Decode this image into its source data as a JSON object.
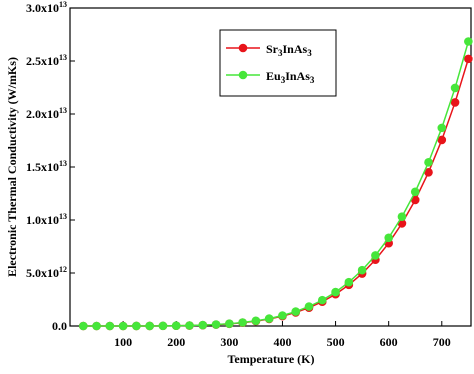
{
  "chart_data": {
    "type": "line",
    "x_label": "Temperature (K)",
    "y_label": "Electronic Thermal Conductivity (W/mKs)",
    "x": [
      25,
      50,
      75,
      100,
      125,
      150,
      175,
      200,
      225,
      250,
      275,
      300,
      325,
      350,
      375,
      400,
      425,
      450,
      475,
      500,
      525,
      550,
      575,
      600,
      625,
      650,
      675,
      700,
      725,
      750
    ],
    "series": [
      {
        "name": "Sr3InAs3",
        "color": "#e8141a",
        "values": [
          450000.0,
          17000000.0,
          140000000.0,
          640000000.0,
          2100000000.0,
          5400000000.0,
          12000000000.0,
          24000000000.0,
          45000000000.0,
          79000000000.0,
          130000000000.0,
          205000000000.0,
          310000000000.0,
          460000000000.0,
          660000000000.0,
          930000000000.0,
          1280000000000.0,
          1730000000000.0,
          2290000000000.0,
          3000000000000.0,
          3880000000000.0,
          4950000000000.0,
          6250000000000.0,
          7810000000000.0,
          9680000000000.0,
          11890000000000.0,
          14500000000000.0,
          17550000000000.0,
          21090000000000.0,
          25200000000000.0
        ]
      },
      {
        "name": "Eu3InAs3",
        "color": "#46e63a",
        "values": [
          480000.0,
          18000000.0,
          150000000.0,
          680000000.0,
          2200000000.0,
          5800000000.0,
          13000000000.0,
          26000000000.0,
          48000000000.0,
          84000000000.0,
          140000000000.0,
          218000000000.0,
          330000000000.0,
          490000000000.0,
          700000000000.0,
          990000000000.0,
          1360000000000.0,
          1840000000000.0,
          2440000000000.0,
          3200000000000.0,
          4130000000000.0,
          5270000000000.0,
          6660000000000.0,
          8320000000000.0,
          10310000000000.0,
          12660000000000.0,
          15440000000000.0,
          18690000000000.0,
          22460000000000.0,
          26840000000000.0
        ]
      }
    ],
    "xlim": [
      0,
      755
    ],
    "xticks": [
      100,
      200,
      300,
      400,
      500,
      600,
      700
    ],
    "ylim": [
      0,
      30000000000000.0
    ],
    "yticks": [
      {
        "value": 0,
        "label": "0.0"
      },
      {
        "value": 5000000000000.0,
        "label": "5.0x10",
        "sup": "12"
      },
      {
        "value": 10000000000000.0,
        "label": "1.0x10",
        "sup": "13"
      },
      {
        "value": 15000000000000.0,
        "label": "1.5x10",
        "sup": "13"
      },
      {
        "value": 20000000000000.0,
        "label": "2.0x10",
        "sup": "13"
      },
      {
        "value": 25000000000000.0,
        "label": "2.5x10",
        "sup": "13"
      },
      {
        "value": 30000000000000.0,
        "label": "3.0x10",
        "sup": "13"
      }
    ],
    "grid": false,
    "legend": "top-center"
  }
}
